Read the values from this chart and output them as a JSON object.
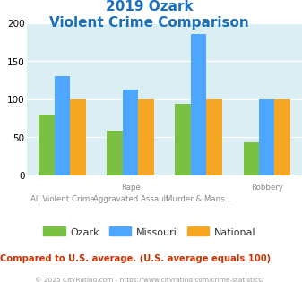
{
  "title_line1": "2019 Ozark",
  "title_line2": "Violent Crime Comparison",
  "title_color": "#1a6fbd",
  "cat_labels_row1": [
    "All Violent Crime",
    "Rape",
    "Murder & Mans...",
    "Robbery"
  ],
  "cat_labels_row2": [
    "",
    "Aggravated Assault",
    "",
    ""
  ],
  "ozark": [
    79,
    58,
    94,
    43
  ],
  "missouri": [
    130,
    113,
    185,
    100
  ],
  "national": [
    100,
    100,
    100,
    100
  ],
  "ozark_color": "#7ac143",
  "missouri_color": "#4da6ff",
  "national_color": "#f5a623",
  "ylim": [
    0,
    200
  ],
  "yticks": [
    0,
    50,
    100,
    150,
    200
  ],
  "plot_bg_color": "#daeef3",
  "note_text": "Compared to U.S. average. (U.S. average equals 100)",
  "note_color": "#cc3300",
  "copyright_text": "© 2025 CityRating.com - https://www.cityrating.com/crime-statistics/",
  "copyright_color": "#999999",
  "legend_labels": [
    "Ozark",
    "Missouri",
    "National"
  ],
  "bar_width": 0.23
}
